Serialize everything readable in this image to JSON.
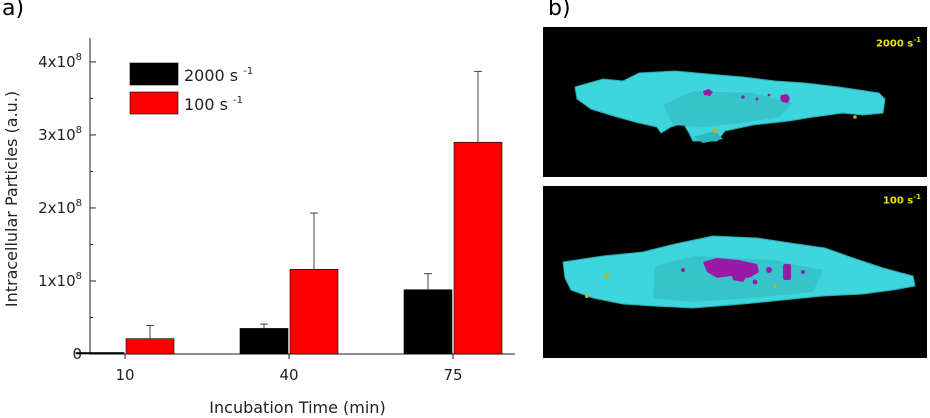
{
  "panel_labels": {
    "a": "a)",
    "b": "b)"
  },
  "images": [
    {
      "label": "2000 s",
      "label_exp": "-1"
    },
    {
      "label": "100 s",
      "label_exp": "-1"
    }
  ],
  "colors": {
    "s2000": "#000000",
    "s100": "#ff0000",
    "cell": "#3dd6dc",
    "particles": "#9a1aa8",
    "gold": "#c8b01a"
  },
  "chart_data": {
    "type": "bar",
    "categories": [
      "10",
      "40",
      "75"
    ],
    "series": [
      {
        "name": "2000 s",
        "name_exp": "-1",
        "color": "#000000",
        "values": [
          0.0,
          35000000,
          88000000
        ],
        "errors": [
          0,
          6000000,
          22000000
        ]
      },
      {
        "name": "100 s",
        "name_exp": "-1",
        "color": "#ff0000",
        "values": [
          21000000,
          116000000,
          290000000
        ],
        "errors": [
          18000000,
          77000000,
          97000000
        ]
      }
    ],
    "xlabel": "Incubation Time (min)",
    "ylabel": "Intracellular Particles (a.u.)",
    "ylim": [
      0,
      430000000
    ],
    "yticks": [
      {
        "value": 0,
        "mant": "0",
        "exp": ""
      },
      {
        "value": 100000000,
        "mant": "1x10",
        "exp": "8"
      },
      {
        "value": 200000000,
        "mant": "2x10",
        "exp": "8"
      },
      {
        "value": 300000000,
        "mant": "3x10",
        "exp": "8"
      },
      {
        "value": 400000000,
        "mant": "4x10",
        "exp": "8"
      }
    ],
    "legend_position": "top-left",
    "grid": false
  }
}
